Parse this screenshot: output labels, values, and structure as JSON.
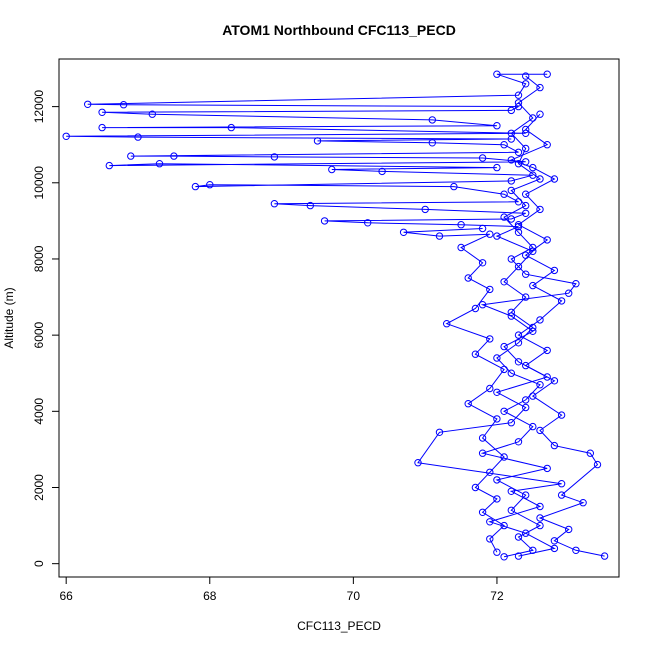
{
  "chart_data": {
    "type": "line",
    "title": "ATOM1 Northbound CFC113_PECD",
    "xlabel": "CFC113_PECD",
    "ylabel": "Altitude (m)",
    "xlim": [
      65.9,
      73.7
    ],
    "ylim": [
      -350,
      13250
    ],
    "x_ticks": [
      66,
      68,
      70,
      72
    ],
    "y_ticks": [
      0,
      2000,
      4000,
      6000,
      8000,
      10000,
      12000
    ],
    "grid": false,
    "legend": "none",
    "markers": "open-circle",
    "series": [
      {
        "color": "#0000ff",
        "points": [
          [
            72.1,
            180
          ],
          [
            72.5,
            350
          ],
          [
            72.3,
            700
          ],
          [
            72.6,
            1000
          ],
          [
            72.2,
            1400
          ],
          [
            72.4,
            1800
          ],
          [
            72.0,
            2200
          ],
          [
            72.7,
            2500
          ],
          [
            71.8,
            2900
          ],
          [
            72.3,
            3200
          ],
          [
            72.5,
            3600
          ],
          [
            72.1,
            4000
          ],
          [
            72.4,
            4300
          ],
          [
            72.6,
            4700
          ],
          [
            72.2,
            5000
          ],
          [
            72.0,
            5400
          ],
          [
            72.3,
            5800
          ],
          [
            72.5,
            6200
          ],
          [
            72.2,
            6600
          ],
          [
            72.4,
            7000
          ],
          [
            72.1,
            7400
          ],
          [
            72.3,
            7800
          ],
          [
            72.5,
            8200
          ],
          [
            72.0,
            8600
          ],
          [
            72.3,
            8850
          ],
          [
            71.5,
            8900
          ],
          [
            70.2,
            8950
          ],
          [
            69.6,
            9000
          ],
          [
            72.2,
            9050
          ],
          [
            72.4,
            9200
          ],
          [
            71.0,
            9300
          ],
          [
            69.4,
            9400
          ],
          [
            68.9,
            9450
          ],
          [
            72.3,
            9500
          ],
          [
            72.1,
            9700
          ],
          [
            71.4,
            9900
          ],
          [
            68.0,
            9950
          ],
          [
            67.8,
            9900
          ],
          [
            72.2,
            10050
          ],
          [
            72.5,
            10200
          ],
          [
            70.4,
            10300
          ],
          [
            69.7,
            10350
          ],
          [
            72.0,
            10400
          ],
          [
            67.3,
            10500
          ],
          [
            66.6,
            10450
          ],
          [
            72.4,
            10550
          ],
          [
            71.8,
            10650
          ],
          [
            68.9,
            10680
          ],
          [
            67.5,
            10700
          ],
          [
            66.9,
            10700
          ],
          [
            72.3,
            10800
          ],
          [
            72.1,
            11000
          ],
          [
            71.1,
            11050
          ],
          [
            69.5,
            11100
          ],
          [
            72.2,
            11150
          ],
          [
            67.0,
            11200
          ],
          [
            66.0,
            11220
          ],
          [
            72.4,
            11300
          ],
          [
            68.3,
            11450
          ],
          [
            66.5,
            11450
          ],
          [
            72.0,
            11500
          ],
          [
            71.1,
            11650
          ],
          [
            67.2,
            11800
          ],
          [
            66.5,
            11850
          ],
          [
            72.2,
            11900
          ],
          [
            72.3,
            12000
          ],
          [
            66.8,
            12050
          ],
          [
            66.3,
            12060
          ],
          [
            72.3,
            12300
          ],
          [
            72.4,
            12600
          ],
          [
            72.0,
            12850
          ],
          [
            72.7,
            12850
          ]
        ]
      },
      {
        "color": "#0000ff",
        "points": [
          [
            72.3,
            200
          ],
          [
            72.8,
            400
          ],
          [
            72.4,
            800
          ],
          [
            71.9,
            1100
          ],
          [
            72.6,
            1500
          ],
          [
            72.2,
            1900
          ],
          [
            72.9,
            2100
          ],
          [
            70.9,
            2650
          ],
          [
            71.2,
            3450
          ],
          [
            72.2,
            3700
          ],
          [
            72.4,
            4100
          ],
          [
            72.0,
            4500
          ],
          [
            72.7,
            4900
          ],
          [
            72.3,
            5300
          ],
          [
            72.1,
            5700
          ],
          [
            72.5,
            6100
          ],
          [
            72.2,
            6500
          ],
          [
            71.8,
            6800
          ],
          [
            73.0,
            7100
          ],
          [
            73.1,
            7350
          ],
          [
            72.4,
            7600
          ],
          [
            72.2,
            8000
          ],
          [
            72.5,
            8300
          ],
          [
            72.3,
            8700
          ],
          [
            72.1,
            9100
          ],
          [
            72.4,
            9400
          ],
          [
            72.2,
            9800
          ],
          [
            72.6,
            10100
          ],
          [
            72.3,
            10500
          ],
          [
            72.4,
            10900
          ],
          [
            72.2,
            11300
          ],
          [
            72.5,
            11700
          ],
          [
            72.3,
            12100
          ],
          [
            72.6,
            12500
          ],
          [
            72.4,
            12800
          ]
        ]
      },
      {
        "color": "#0000ff",
        "points": [
          [
            73.5,
            200
          ],
          [
            73.1,
            350
          ],
          [
            72.8,
            600
          ],
          [
            73.0,
            900
          ],
          [
            72.6,
            1200
          ],
          [
            73.2,
            1600
          ],
          [
            72.9,
            1800
          ],
          [
            73.4,
            2600
          ],
          [
            73.3,
            2900
          ],
          [
            72.8,
            3100
          ],
          [
            72.6,
            3500
          ],
          [
            72.9,
            3900
          ],
          [
            72.5,
            4400
          ],
          [
            72.8,
            4800
          ],
          [
            72.4,
            5200
          ],
          [
            72.7,
            5600
          ],
          [
            72.3,
            6000
          ],
          [
            72.6,
            6400
          ],
          [
            72.9,
            6900
          ],
          [
            72.5,
            7300
          ],
          [
            72.8,
            7700
          ],
          [
            72.4,
            8100
          ],
          [
            72.7,
            8500
          ],
          [
            72.3,
            8900
          ],
          [
            72.6,
            9300
          ],
          [
            72.4,
            9700
          ],
          [
            72.8,
            10100
          ],
          [
            72.5,
            10400
          ],
          [
            72.2,
            10600
          ],
          [
            72.7,
            11000
          ],
          [
            72.4,
            11400
          ],
          [
            72.6,
            11800
          ]
        ]
      },
      {
        "color": "#0000ff",
        "points": [
          [
            72.0,
            300
          ],
          [
            71.9,
            650
          ],
          [
            72.1,
            1000
          ],
          [
            71.8,
            1350
          ],
          [
            72.0,
            1700
          ],
          [
            71.7,
            2000
          ],
          [
            71.9,
            2400
          ],
          [
            72.1,
            2800
          ],
          [
            71.8,
            3300
          ],
          [
            72.0,
            3800
          ],
          [
            71.6,
            4200
          ],
          [
            71.9,
            4600
          ],
          [
            72.1,
            5100
          ],
          [
            71.7,
            5500
          ],
          [
            71.9,
            5900
          ],
          [
            71.3,
            6300
          ],
          [
            71.7,
            6700
          ],
          [
            71.9,
            7200
          ],
          [
            71.6,
            7500
          ],
          [
            71.8,
            7900
          ],
          [
            71.5,
            8300
          ],
          [
            71.9,
            8650
          ],
          [
            71.2,
            8600
          ],
          [
            70.7,
            8700
          ],
          [
            71.8,
            8800
          ]
        ]
      }
    ]
  }
}
